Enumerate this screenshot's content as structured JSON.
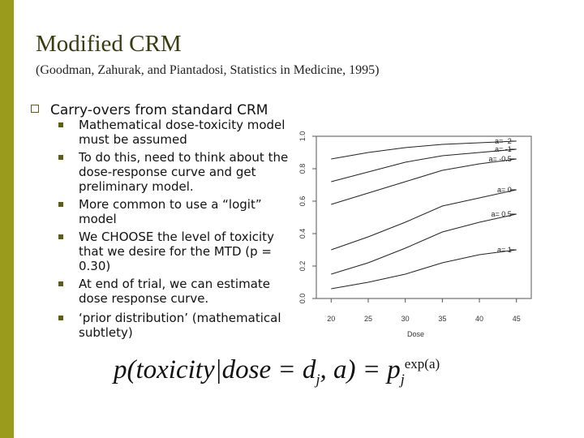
{
  "slide": {
    "title": "Modified CRM",
    "subtitle": "(Goodman, Zahurak, and Piantadosi, Statistics in Medicine, 1995)",
    "top_bullet": "Carry-overs from standard CRM",
    "sub_bullets": [
      "Mathematical dose-toxicity model must be assumed",
      "To do this, need to think about the dose-response curve and get preliminary model.",
      "More common to use a “logit” model",
      "We CHOOSE the level of toxicity that we desire for the MTD (p = 0.30)",
      "At end of trial, we can estimate dose response curve.",
      "‘prior distribution’ (mathematical subtlety)"
    ],
    "formula": {
      "lhs": "p(toxicity|dose = d",
      "lhs_sub": "j",
      "mid": ", a) = p",
      "rhs_sub": "j",
      "rhs_sup": "exp(a)"
    },
    "colors": {
      "accent_bar": "#9a9a1c",
      "bullet": "#5e5e10"
    }
  },
  "chart_data": {
    "type": "line",
    "xlabel": "Dose",
    "x": [
      20,
      25,
      30,
      35,
      40,
      45
    ],
    "xlim": [
      18,
      47
    ],
    "ylim": [
      0,
      1
    ],
    "yticks": [
      "0.0",
      "0.2",
      "0.4",
      "0.6",
      "0.8",
      "1.0"
    ],
    "series": [
      {
        "name": "a= -2",
        "values": [
          0.86,
          0.9,
          0.93,
          0.95,
          0.96,
          0.97
        ]
      },
      {
        "name": "a= -1",
        "values": [
          0.72,
          0.78,
          0.84,
          0.88,
          0.9,
          0.92
        ]
      },
      {
        "name": "a= -0.5",
        "values": [
          0.58,
          0.65,
          0.72,
          0.79,
          0.83,
          0.86
        ]
      },
      {
        "name": "a= 0",
        "values": [
          0.3,
          0.38,
          0.47,
          0.57,
          0.62,
          0.67
        ]
      },
      {
        "name": "a= 0.5",
        "values": [
          0.15,
          0.22,
          0.31,
          0.41,
          0.47,
          0.52
        ]
      },
      {
        "name": "a= 1",
        "values": [
          0.06,
          0.1,
          0.15,
          0.22,
          0.27,
          0.3
        ]
      }
    ],
    "grid": false
  }
}
